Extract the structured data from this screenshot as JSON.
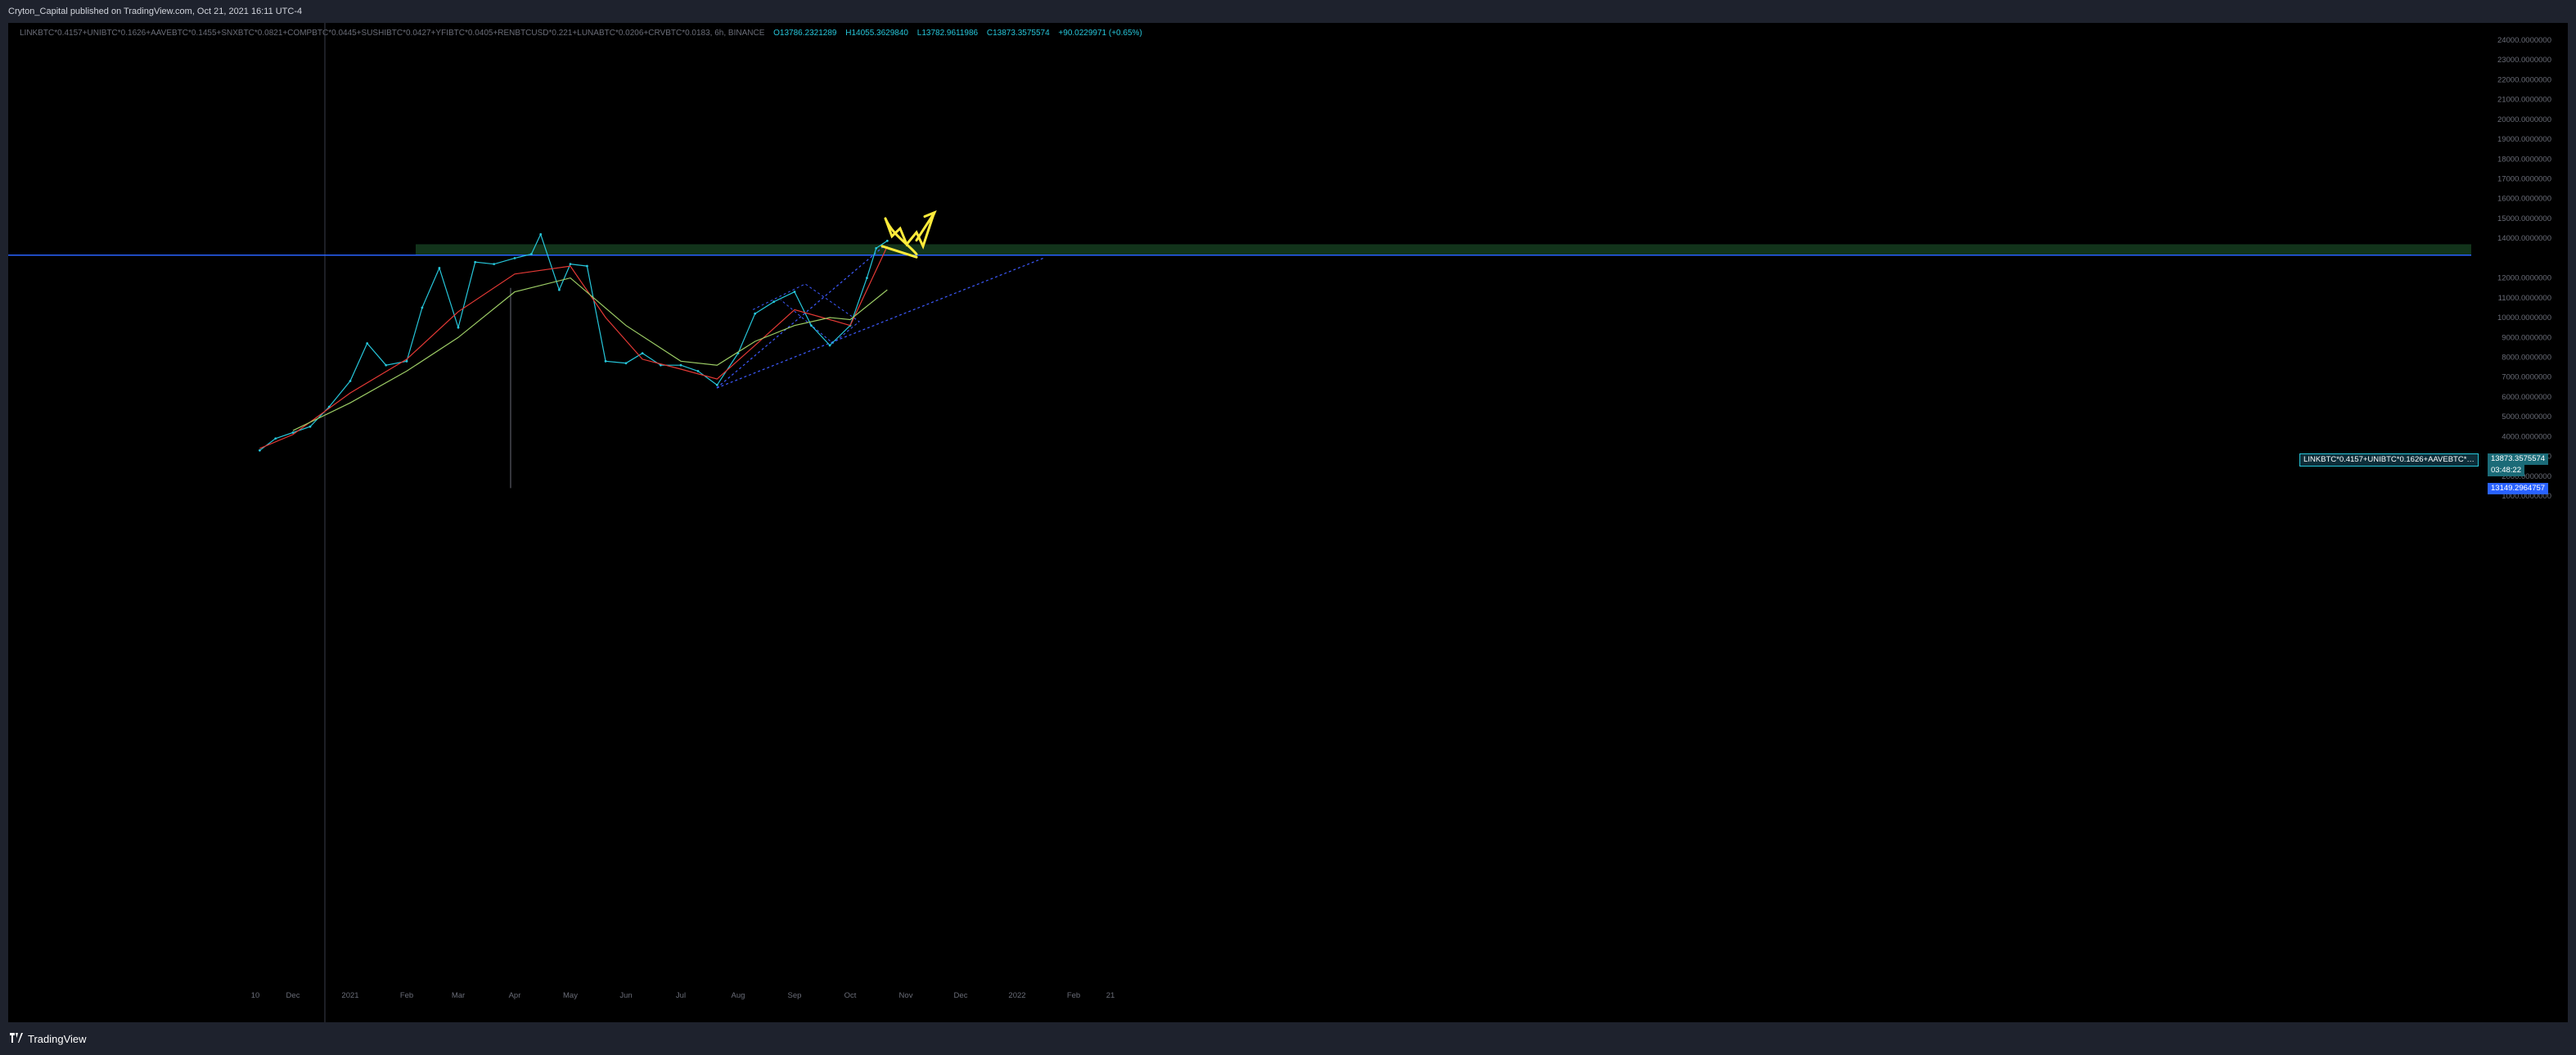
{
  "header": {
    "publisher_line": "Cryton_Capital published on TradingView.com, Oct 21, 2021 16:11 UTC-4"
  },
  "legend": {
    "symbol": "LINKBTC*0.4157+UNIBTC*0.1626+AAVEBTC*0.1455+SNXBTC*0.0821+COMPBTC*0.0445+SUSHIBTC*0.0427+YFIBTC*0.0405+RENBTCUSD*0.221+LUNABTC*0.0206+CRVBTC*0.0183, 6h, BINANCE",
    "open": "O13786.2321289",
    "high": "H14055.3629840",
    "low": "L13782.9611986",
    "close": "C13873.3575574",
    "change": "+90.0229971 (+0.65%)"
  },
  "price_tags": {
    "symbol_tag": "LINKBTC*0.4157+UNIBTC*0.1626+AAVEBTC*…",
    "last_price": "13873.3575574",
    "countdown": "03:48:22",
    "line_price": "13149.2964757"
  },
  "colors": {
    "background": "#000000",
    "frame": "#1e222d",
    "price_line": "#26c6da",
    "ma_fast": "#e53935",
    "ma_slow": "#9ccc65",
    "zone_fill": "#143a1e",
    "horizontal_line": "#2962ff",
    "channel": "#3d5afe",
    "drawing": "#ffeb3b"
  },
  "footer": {
    "brand": "TradingView"
  },
  "chart_data": {
    "type": "line",
    "title": "",
    "xlabel": "",
    "ylabel": "",
    "ylim": [
      0,
      24500
    ],
    "y_ticks": [
      "24000.0000000",
      "23000.0000000",
      "22000.0000000",
      "21000.0000000",
      "20000.0000000",
      "19000.0000000",
      "18000.0000000",
      "17000.0000000",
      "16000.0000000",
      "15000.0000000",
      "14000.0000000",
      "12000.0000000",
      "11000.0000000",
      "10000.0000000",
      "9000.0000000",
      "8000.0000000",
      "7000.0000000",
      "6000.0000000",
      "5000.0000000",
      "4000.0000000",
      "3000.0000000",
      "2000.0000000",
      "1000.0000000"
    ],
    "x_ticks": [
      "10",
      "Dec",
      "2021",
      "Feb",
      "Mar",
      "Apr",
      "May",
      "Jun",
      "Jul",
      "Aug",
      "Sep",
      "Oct",
      "Nov",
      "Dec",
      "2022",
      "Feb",
      "21"
    ],
    "horizontal_line": 13149.2964757,
    "resistance_zone": [
      13149.2964757,
      13700
    ],
    "series": [
      {
        "x": [
          "Nov 10",
          "Nov 20",
          "Dec 1",
          "Dec 10",
          "Dec 20",
          "Jan 1",
          "Jan 10",
          "Jan 20",
          "Feb 1",
          "Feb 10",
          "Feb 20",
          "Mar 1",
          "Mar 10",
          "Mar 20",
          "Apr 1",
          "Apr 10",
          "Apr 15",
          "Apr 25",
          "May 1",
          "May 10",
          "May 20",
          "Jun 1",
          "Jun 10",
          "Jun 20",
          "Jul 1",
          "Jul 10",
          "Jul 20",
          "Aug 1",
          "Aug 10",
          "Aug 20",
          "Sep 1",
          "Sep 10",
          "Sep 20",
          "Oct 1",
          "Oct 10",
          "Oct 15",
          "Oct 21"
        ],
        "values": [
          3300,
          3900,
          4200,
          4500,
          5500,
          6800,
          8700,
          7600,
          7800,
          10500,
          12500,
          9500,
          12800,
          12700,
          13000,
          13200,
          14200,
          11400,
          12700,
          12600,
          7800,
          7700,
          8200,
          7600,
          7600,
          7300,
          6600,
          8200,
          10200,
          10800,
          11300,
          9600,
          8600,
          9600,
          12000,
          13500,
          13873
        ]
      },
      {
        "name": "",
        "x": [
          "Nov 10",
          "Dec 1",
          "Jan 1",
          "Feb 1",
          "Mar 1",
          "Apr 1",
          "May 1",
          "May 20",
          "Jun 10",
          "Jul 1",
          "Jul 20",
          "Aug 10",
          "Sep 1",
          "Sep 20",
          "Oct 1",
          "Oct 21"
        ],
        "values": [
          3400,
          4100,
          6200,
          7900,
          10300,
          12200,
          12600,
          10000,
          7900,
          7400,
          6900,
          8600,
          10400,
          9900,
          9600,
          13600
        ]
      },
      {
        "name": "",
        "x": [
          "Dec 1",
          "Jan 1",
          "Feb 1",
          "Mar 1",
          "Apr 1",
          "May 1",
          "Jun 1",
          "Jul 1",
          "Jul 20",
          "Aug 10",
          "Sep 1",
          "Sep 20",
          "Oct 1",
          "Oct 21"
        ],
        "values": [
          4300,
          5700,
          7300,
          9000,
          11300,
          12000,
          9600,
          7800,
          7600,
          8800,
          9600,
          10000,
          9900,
          11400
        ]
      }
    ]
  }
}
